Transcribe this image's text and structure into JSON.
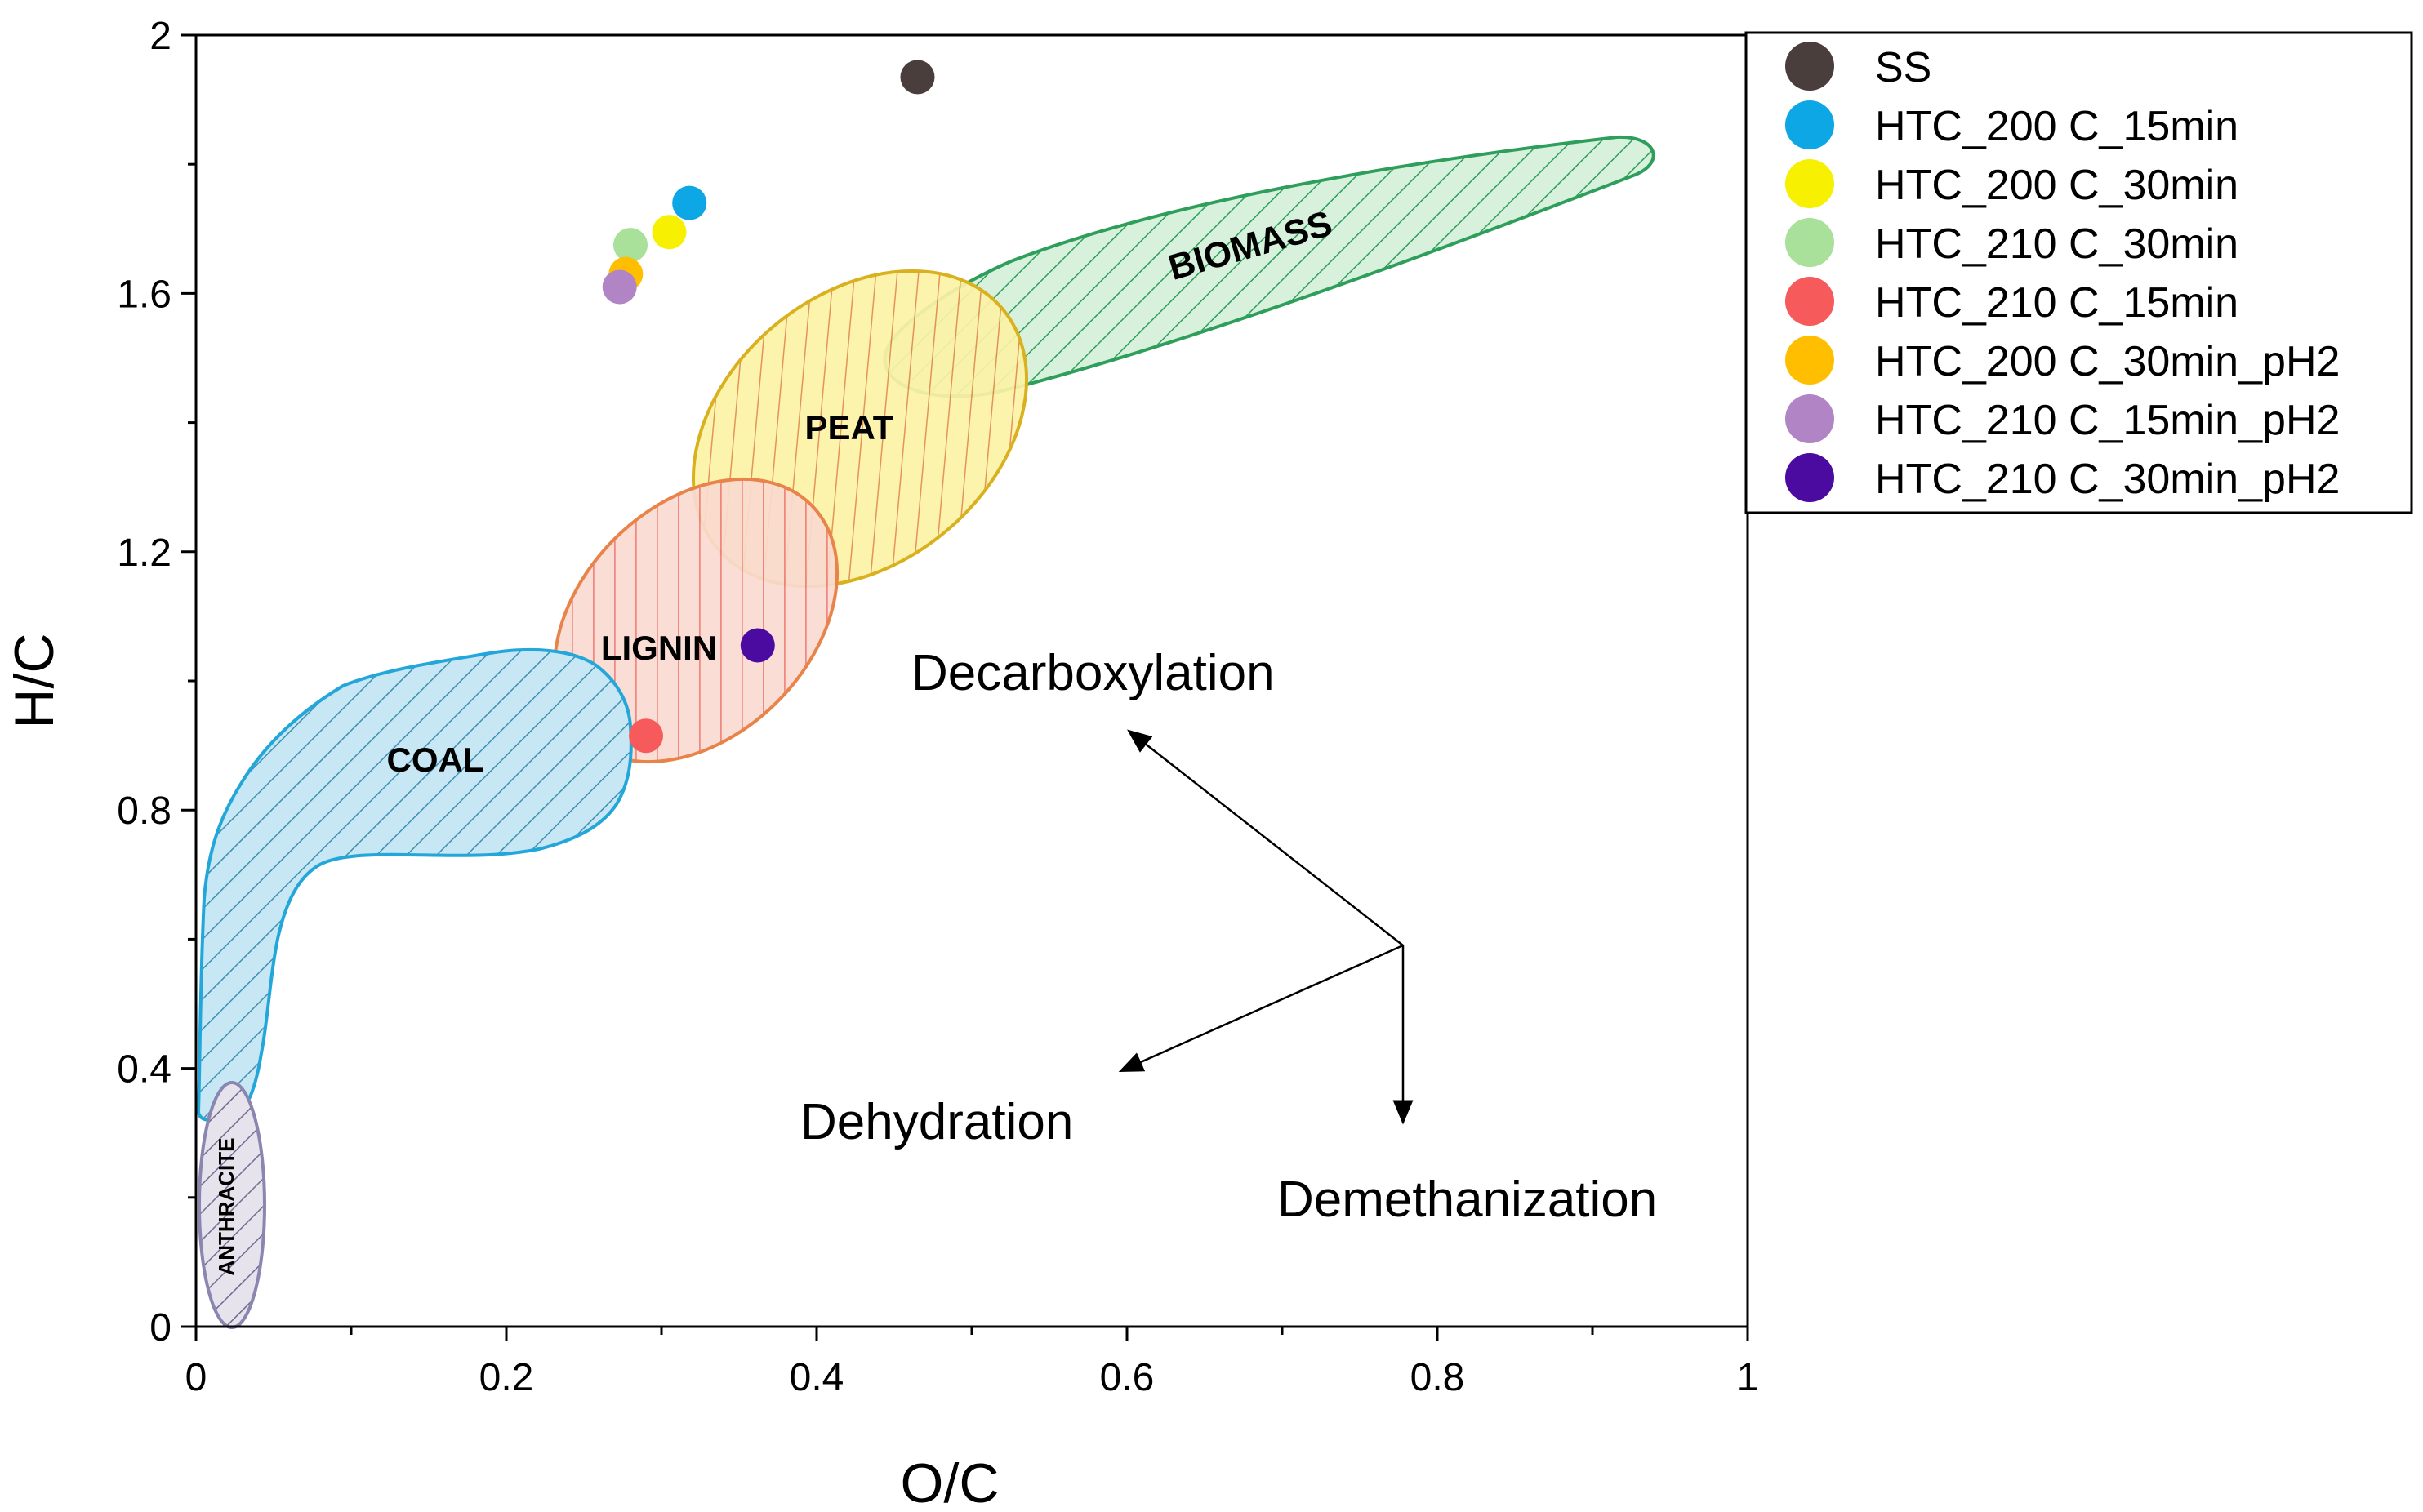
{
  "chart_data": {
    "type": "scatter",
    "title": "",
    "xlabel": "O/C",
    "ylabel": "H/C",
    "xlim": [
      0,
      1
    ],
    "ylim": [
      0,
      2
    ],
    "x_ticks": [
      {
        "value": 0,
        "label": "0"
      },
      {
        "value": 0.2,
        "label": "0.2"
      },
      {
        "value": 0.4,
        "label": "0.4"
      },
      {
        "value": 0.6,
        "label": "0.6"
      },
      {
        "value": 0.8,
        "label": "0.8"
      },
      {
        "value": 1,
        "label": "1"
      }
    ],
    "y_ticks": [
      {
        "value": 0,
        "label": "0"
      },
      {
        "value": 0.4,
        "label": "0.4"
      },
      {
        "value": 0.8,
        "label": "0.8"
      },
      {
        "value": 1.2,
        "label": "1.2"
      },
      {
        "value": 1.6,
        "label": "1.6"
      },
      {
        "value": 2,
        "label": "2"
      }
    ],
    "grid": false,
    "legend_position": "outside-top-right",
    "series": [
      {
        "name": "SS",
        "color": "#4a3e3c",
        "x": 0.465,
        "y": 1.935
      },
      {
        "name": "HTC_200 C_15min",
        "color": "#0ea7e6",
        "x": 0.318,
        "y": 1.74
      },
      {
        "name": "HTC_200 C_30min",
        "color": "#f7f000",
        "x": 0.305,
        "y": 1.695
      },
      {
        "name": "HTC_210 C_30min",
        "color": "#a9e09a",
        "x": 0.28,
        "y": 1.675
      },
      {
        "name": "HTC_210 C_15min",
        "color": "#f75a5a",
        "x": 0.29,
        "y": 0.915
      },
      {
        "name": "HTC_200 C_30min_pH2",
        "color": "#ffbf00",
        "x": 0.277,
        "y": 1.63
      },
      {
        "name": "HTC_210 C_15min_pH2",
        "color": "#b185c5",
        "x": 0.273,
        "y": 1.61
      },
      {
        "name": "HTC_210 C_30min_pH2",
        "color": "#4b0aa0",
        "x": 0.362,
        "y": 1.055
      }
    ],
    "regions": [
      {
        "name": "BIOMASS",
        "label": "BIOMASS",
        "fill": "#d8f1dd",
        "stroke": "#2e9e5b"
      },
      {
        "name": "PEAT",
        "label": "PEAT",
        "fill": "#fcf2a6",
        "stroke": "#d9b11e"
      },
      {
        "name": "LIGNIN",
        "label": "LIGNIN",
        "fill": "#fadad0",
        "stroke": "#e8844a"
      },
      {
        "name": "COAL",
        "label": "COAL",
        "fill": "#c6e7f3",
        "stroke": "#23a7da"
      },
      {
        "name": "ANTHRACITE",
        "label": "ANTHRACITE",
        "fill": "#e6e3ec",
        "stroke": "#8a86b0"
      }
    ],
    "annotations": [
      {
        "name": "decarboxylation",
        "text": "Decarboxylation"
      },
      {
        "name": "dehydration",
        "text": "Dehydration"
      },
      {
        "name": "demethanization",
        "text": "Demethanization"
      }
    ]
  }
}
